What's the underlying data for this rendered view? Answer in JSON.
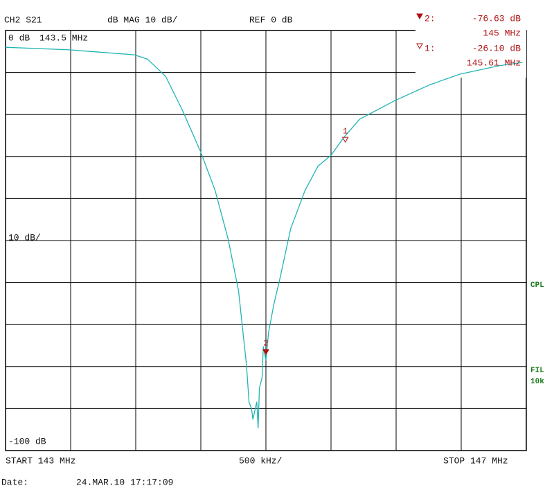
{
  "header": {
    "channel": "CH2 S21",
    "format": "dB MAG 10 dB/",
    "reference": "REF 0 dB"
  },
  "left_labels": {
    "top": "0 dB",
    "top_freq": "143.5 MHz",
    "scale": "10 dB/",
    "bottom": "-100 dB"
  },
  "side_labels": [
    "CPL",
    "FIL",
    "10k"
  ],
  "footer": {
    "start": "START 143 MHz",
    "span": "500 kHz/",
    "stop": "STOP 147 MHz",
    "date_label": "Date:",
    "date": "24.MAR.10 17:17:09"
  },
  "chart_data": {
    "type": "line",
    "xlim": [
      143,
      147
    ],
    "ylim": [
      -100,
      0
    ],
    "x": [
      143.0,
      143.49,
      143.99,
      144.09,
      144.23,
      144.36,
      144.5,
      144.61,
      144.71,
      144.79,
      144.83,
      144.85,
      144.87,
      144.89,
      144.9,
      144.93,
      144.94,
      144.95,
      144.97,
      144.98,
      145.0,
      145.02,
      145.06,
      145.11,
      145.19,
      145.3,
      145.4,
      145.5,
      145.6,
      145.72,
      145.99,
      146.26,
      146.49,
      146.79,
      146.97
    ],
    "series": [
      {
        "color": "#22b4b4",
        "values": [
          -4.0,
          -4.6,
          -5.8,
          -6.8,
          -10.9,
          -19.1,
          -29.0,
          -38.1,
          -49.7,
          -62.0,
          -73.6,
          -79.4,
          -88.4,
          -90.1,
          -92.6,
          -88.4,
          -94.7,
          -85.1,
          -82.7,
          -75.2,
          -78.5,
          -71.9,
          -65.3,
          -58.7,
          -47.2,
          -38.1,
          -32.3,
          -29.7,
          -25.4,
          -21.1,
          -16.7,
          -12.9,
          -10.4,
          -8.4,
          -7.6
        ]
      }
    ],
    "markers": [
      {
        "label": "2",
        "index_label": "2:",
        "db": -76.63,
        "mhz": 145,
        "db_label": "-76.63 dB",
        "mhz_label": "145 MHz",
        "color": "#b01010",
        "filled": true
      },
      {
        "label": "1",
        "index_label": "1:",
        "db": -26.1,
        "mhz": 145.61,
        "db_label": "-26.10 dB",
        "mhz_label": "145.61 MHz",
        "color": "#b01010",
        "filled": false
      }
    ]
  }
}
